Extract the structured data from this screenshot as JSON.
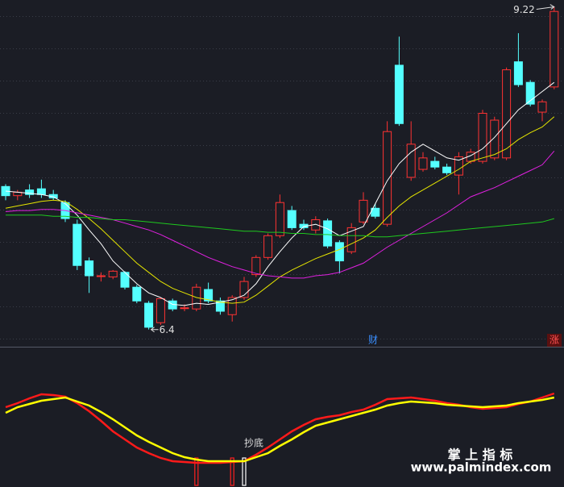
{
  "chart_data": [
    {
      "type": "candlestick",
      "up_color": "#ff3232",
      "down_color": "#54ffff",
      "ylim": [
        6.25,
        9.28
      ],
      "grid": true,
      "open": [
        7.65,
        7.57,
        7.62,
        7.63,
        7.58,
        7.51,
        7.32,
        7.0,
        6.87,
        6.86,
        6.9,
        6.77,
        6.63,
        6.46,
        6.65,
        6.59,
        6.58,
        6.75,
        6.65,
        6.53,
        6.68,
        6.88,
        7.03,
        7.22,
        7.44,
        7.32,
        7.27,
        7.35,
        7.16,
        7.08,
        7.34,
        7.46,
        7.32,
        8.71,
        7.73,
        7.8,
        7.87,
        7.82,
        7.75,
        7.87,
        7.87,
        7.9,
        7.9,
        8.74,
        8.56,
        8.3,
        8.52
      ],
      "high": [
        7.67,
        7.62,
        7.67,
        7.71,
        7.62,
        7.53,
        7.36,
        7.03,
        6.9,
        6.92,
        6.91,
        6.79,
        6.65,
        6.68,
        6.67,
        6.62,
        6.8,
        6.81,
        6.68,
        6.7,
        6.86,
        7.05,
        7.24,
        7.58,
        7.48,
        7.36,
        7.39,
        7.37,
        7.18,
        7.33,
        7.6,
        7.5,
        8.22,
        8.96,
        8.22,
        7.95,
        7.91,
        7.85,
        7.95,
        7.98,
        8.32,
        8.26,
        8.69,
        8.99,
        8.58,
        8.41,
        9.22
      ],
      "low": [
        7.53,
        7.53,
        7.55,
        7.55,
        7.53,
        7.34,
        6.92,
        6.72,
        6.82,
        6.84,
        6.75,
        6.63,
        6.4,
        6.44,
        6.56,
        6.56,
        6.56,
        6.63,
        6.53,
        6.47,
        6.66,
        6.86,
        7.01,
        7.2,
        7.27,
        7.27,
        7.24,
        7.11,
        6.89,
        7.06,
        7.32,
        7.37,
        7.3,
        8.18,
        7.7,
        7.78,
        7.8,
        7.75,
        7.58,
        7.85,
        7.85,
        7.88,
        7.88,
        8.52,
        8.35,
        8.22,
        8.5
      ],
      "close": [
        7.57,
        7.6,
        7.58,
        7.58,
        7.55,
        7.37,
        6.96,
        6.87,
        6.87,
        6.91,
        6.77,
        6.65,
        6.42,
        6.67,
        6.58,
        6.59,
        6.77,
        6.65,
        6.56,
        6.68,
        6.82,
        7.03,
        7.22,
        7.51,
        7.29,
        7.29,
        7.36,
        7.13,
        7.0,
        7.29,
        7.53,
        7.39,
        8.13,
        8.2,
        8.02,
        7.9,
        7.82,
        7.77,
        7.91,
        7.95,
        8.29,
        8.23,
        8.67,
        8.54,
        8.37,
        8.39,
        9.18
      ],
      "series": [
        {
          "color": "#ffffff",
          "values": [
            7.61,
            7.6,
            7.59,
            7.58,
            7.56,
            7.5,
            7.4,
            7.27,
            7.15,
            7.0,
            6.9,
            6.8,
            6.72,
            6.68,
            6.62,
            6.61,
            6.63,
            6.62,
            6.64,
            6.66,
            6.7,
            6.8,
            6.95,
            7.08,
            7.2,
            7.3,
            7.32,
            7.28,
            7.22,
            7.26,
            7.3,
            7.5,
            7.7,
            7.85,
            7.95,
            8.02,
            7.96,
            7.9,
            7.88,
            7.92,
            7.98,
            8.08,
            8.2,
            8.32,
            8.4,
            8.48,
            8.56
          ]
        },
        {
          "color": "#e6e600",
          "values": [
            7.46,
            7.48,
            7.5,
            7.52,
            7.53,
            7.52,
            7.45,
            7.37,
            7.28,
            7.18,
            7.08,
            6.98,
            6.9,
            6.82,
            6.76,
            6.72,
            6.68,
            6.66,
            6.64,
            6.63,
            6.64,
            6.7,
            6.78,
            6.86,
            6.92,
            6.97,
            7.02,
            7.06,
            7.1,
            7.15,
            7.2,
            7.27,
            7.38,
            7.48,
            7.56,
            7.62,
            7.68,
            7.74,
            7.8,
            7.87,
            7.9,
            7.93,
            7.98,
            8.06,
            8.12,
            8.17,
            8.26
          ]
        },
        {
          "color": "#e020e0",
          "values": [
            7.43,
            7.44,
            7.44,
            7.45,
            7.45,
            7.44,
            7.42,
            7.4,
            7.38,
            7.36,
            7.33,
            7.3,
            7.27,
            7.23,
            7.18,
            7.13,
            7.08,
            7.03,
            6.99,
            6.95,
            6.92,
            6.89,
            6.87,
            6.86,
            6.85,
            6.85,
            6.87,
            6.88,
            6.9,
            6.94,
            6.98,
            7.05,
            7.12,
            7.18,
            7.24,
            7.3,
            7.36,
            7.42,
            7.49,
            7.56,
            7.6,
            7.64,
            7.69,
            7.74,
            7.79,
            7.84,
            7.96
          ]
        },
        {
          "color": "#1ec81e",
          "values": [
            7.4,
            7.4,
            7.4,
            7.4,
            7.39,
            7.39,
            7.38,
            7.38,
            7.37,
            7.36,
            7.36,
            7.35,
            7.34,
            7.33,
            7.32,
            7.31,
            7.3,
            7.29,
            7.28,
            7.27,
            7.26,
            7.26,
            7.25,
            7.25,
            7.24,
            7.24,
            7.23,
            7.23,
            7.22,
            7.22,
            7.22,
            7.21,
            7.21,
            7.22,
            7.23,
            7.24,
            7.25,
            7.26,
            7.27,
            7.28,
            7.29,
            7.3,
            7.31,
            7.32,
            7.33,
            7.34,
            7.37
          ]
        }
      ],
      "annotations": [
        "财",
        "涨"
      ]
    },
    {
      "type": "line",
      "ylim": [
        0,
        100
      ],
      "series": [
        {
          "color": "#ff1a1a",
          "values": [
            75,
            80,
            86,
            91,
            90,
            88,
            80,
            70,
            58,
            45,
            35,
            25,
            18,
            12,
            8,
            7,
            6,
            6,
            6,
            7,
            8,
            16,
            25,
            35,
            45,
            53,
            60,
            63,
            65,
            69,
            72,
            78,
            85,
            86,
            87,
            85,
            83,
            80,
            78,
            75,
            73,
            74,
            75,
            79,
            82,
            87,
            92
          ]
        },
        {
          "color": "#ffff00",
          "values": [
            68,
            75,
            79,
            83,
            85,
            87,
            82,
            77,
            69,
            60,
            50,
            40,
            32,
            25,
            18,
            13,
            10,
            8,
            8,
            8,
            8,
            13,
            18,
            27,
            35,
            44,
            52,
            56,
            60,
            64,
            68,
            72,
            77,
            80,
            82,
            81,
            80,
            78,
            77,
            76,
            75,
            76,
            77,
            80,
            82,
            84,
            87
          ]
        }
      ],
      "signal_bars": [
        {
          "index": 16,
          "color": "#ff2020"
        },
        {
          "index": 19,
          "color": "#ff2020"
        },
        {
          "index": 20,
          "color": "#ffffff"
        }
      ],
      "signal_label": "抄底"
    }
  ],
  "watermark": {
    "title": "掌 上 指 标",
    "url": "www.palmindex.com"
  }
}
